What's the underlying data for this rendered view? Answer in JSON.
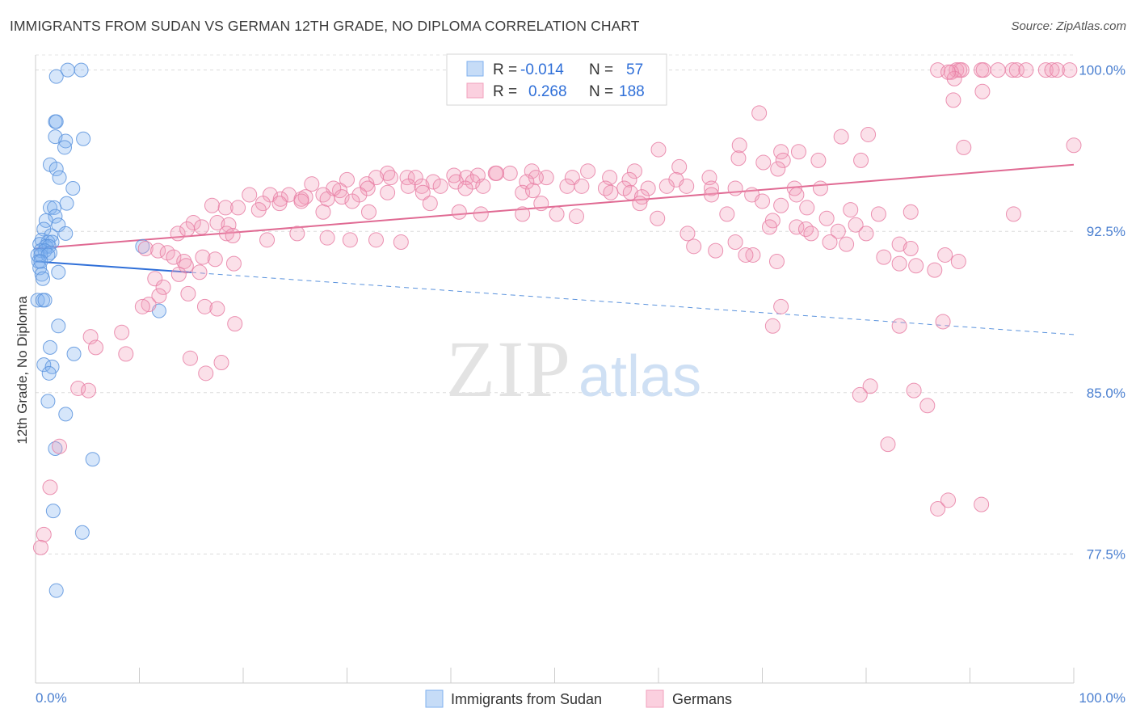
{
  "title": "IMMIGRANTS FROM SUDAN VS GERMAN 12TH GRADE, NO DIPLOMA CORRELATION CHART",
  "source": "Source: ZipAtlas.com",
  "watermark": {
    "zip": "ZIP",
    "atlas": "atlas"
  },
  "legend_box": {
    "rows": [
      {
        "r_label": "R =",
        "r_value": "-0.014",
        "n_label": "N =",
        "n_value": "57",
        "color": "#7fb0ef"
      },
      {
        "r_label": "R =",
        "r_value": "0.268",
        "n_label": "N =",
        "n_value": "188",
        "color": "#f2a0bc"
      }
    ]
  },
  "chart_data": {
    "type": "scatter",
    "title": "IMMIGRANTS FROM SUDAN VS GERMAN 12TH GRADE, NO DIPLOMA CORRELATION CHART",
    "xlabel": "",
    "ylabel": "12th Grade, No Diploma",
    "x_tick_labels": [
      "0.0%",
      "100.0%"
    ],
    "y_tick_labels": [
      "100.0%",
      "92.5%",
      "85.0%",
      "77.5%"
    ],
    "y_ticks": [
      100.0,
      92.5,
      85.0,
      77.5
    ],
    "xlim": [
      0,
      100
    ],
    "ylim": [
      71.5,
      100.7
    ],
    "grid": true,
    "legend_position": "bottom",
    "series": [
      {
        "name": "Immigrants from Sudan",
        "color": "#7fb0ef",
        "stroke": "#5b93dd",
        "trend": {
          "x": [
            0,
            100
          ],
          "y": [
            91.1,
            87.7
          ],
          "solid_until": 15
        },
        "points": [
          [
            3.1,
            100
          ],
          [
            4.4,
            100
          ],
          [
            2,
            99.7
          ],
          [
            1.9,
            97.6
          ],
          [
            2,
            97.6
          ],
          [
            1.9,
            96.9
          ],
          [
            2.9,
            96.7
          ],
          [
            4.6,
            96.8
          ],
          [
            2.8,
            96.4
          ],
          [
            1.4,
            95.6
          ],
          [
            2,
            95.4
          ],
          [
            2.3,
            95
          ],
          [
            3.6,
            94.5
          ],
          [
            3,
            93.8
          ],
          [
            1.4,
            93.6
          ],
          [
            1.8,
            93.6
          ],
          [
            1.9,
            93.2
          ],
          [
            1,
            93
          ],
          [
            2.2,
            92.8
          ],
          [
            0.8,
            92.6
          ],
          [
            2.9,
            92.4
          ],
          [
            1.5,
            92.3
          ],
          [
            0.6,
            92.1
          ],
          [
            1.2,
            92
          ],
          [
            1.6,
            92
          ],
          [
            0.4,
            91.9
          ],
          [
            1,
            91.8
          ],
          [
            1.3,
            91.8
          ],
          [
            10.3,
            91.8
          ],
          [
            0.5,
            91.6
          ],
          [
            0.9,
            91.6
          ],
          [
            1.4,
            91.5
          ],
          [
            0.2,
            91.4
          ],
          [
            0.5,
            91.4
          ],
          [
            1.2,
            91.4
          ],
          [
            0.3,
            91.1
          ],
          [
            0.5,
            91.1
          ],
          [
            0.4,
            90.8
          ],
          [
            2.2,
            90.6
          ],
          [
            0.6,
            90.5
          ],
          [
            0.7,
            90.3
          ],
          [
            0.2,
            89.3
          ],
          [
            0.7,
            89.3
          ],
          [
            0.9,
            89.3
          ],
          [
            11.9,
            88.8
          ],
          [
            2.2,
            88.1
          ],
          [
            1.4,
            87.1
          ],
          [
            3.7,
            86.8
          ],
          [
            0.8,
            86.3
          ],
          [
            1.6,
            86.2
          ],
          [
            1.3,
            85.9
          ],
          [
            1.2,
            84.6
          ],
          [
            2.9,
            84
          ],
          [
            1.9,
            82.4
          ],
          [
            5.5,
            81.9
          ],
          [
            1.7,
            79.5
          ],
          [
            4.5,
            78.5
          ],
          [
            2,
            75.8
          ]
        ]
      },
      {
        "name": "Germans",
        "color": "#f2a0bc",
        "stroke": "#e87fa5",
        "trend": {
          "x": [
            0,
            100
          ],
          "y": [
            91.7,
            95.6
          ]
        },
        "points": [
          [
            86.9,
            100
          ],
          [
            88.7,
            100
          ],
          [
            89,
            100
          ],
          [
            89.2,
            100
          ],
          [
            91.1,
            100
          ],
          [
            91.3,
            100
          ],
          [
            92.7,
            100
          ],
          [
            94.1,
            100
          ],
          [
            94.5,
            100
          ],
          [
            95.4,
            100
          ],
          [
            97.3,
            100
          ],
          [
            97.9,
            100
          ],
          [
            98.4,
            100
          ],
          [
            99.6,
            100
          ],
          [
            88.2,
            99.9
          ],
          [
            88.5,
            99.6
          ],
          [
            87.9,
            99.9
          ],
          [
            91.2,
            99
          ],
          [
            88.4,
            98.6
          ],
          [
            69.7,
            98
          ],
          [
            80.2,
            97
          ],
          [
            77.6,
            96.9
          ],
          [
            100,
            96.5
          ],
          [
            89.4,
            96.4
          ],
          [
            67.8,
            96.5
          ],
          [
            60,
            96.3
          ],
          [
            71.8,
            96.2
          ],
          [
            73.5,
            96.2
          ],
          [
            67.7,
            95.9
          ],
          [
            72,
            95.8
          ],
          [
            75.4,
            95.8
          ],
          [
            79.5,
            95.8
          ],
          [
            70.1,
            95.7
          ],
          [
            62,
            95.5
          ],
          [
            71.5,
            95.4
          ],
          [
            47.8,
            95.3
          ],
          [
            57.7,
            95.3
          ],
          [
            53.2,
            95.3
          ],
          [
            45.7,
            95.2
          ],
          [
            44.3,
            95.2
          ],
          [
            33.9,
            95.2
          ],
          [
            44.4,
            95.2
          ],
          [
            40.3,
            95.1
          ],
          [
            51.7,
            95
          ],
          [
            49.2,
            95
          ],
          [
            41.5,
            95
          ],
          [
            35.8,
            95
          ],
          [
            36.6,
            95
          ],
          [
            64.9,
            95
          ],
          [
            61.7,
            94.9
          ],
          [
            57.2,
            94.9
          ],
          [
            55.3,
            95
          ],
          [
            48.2,
            95
          ],
          [
            42.6,
            95.1
          ],
          [
            34.2,
            95
          ],
          [
            32.8,
            95
          ],
          [
            26.6,
            94.7
          ],
          [
            30,
            94.9
          ],
          [
            31.9,
            94.7
          ],
          [
            38.3,
            94.8
          ],
          [
            42.1,
            94.8
          ],
          [
            40.5,
            94.8
          ],
          [
            47.3,
            94.8
          ],
          [
            35.9,
            94.6
          ],
          [
            39,
            94.6
          ],
          [
            43.1,
            94.6
          ],
          [
            51.2,
            94.6
          ],
          [
            52.6,
            94.6
          ],
          [
            54.9,
            94.5
          ],
          [
            56.7,
            94.5
          ],
          [
            59,
            94.5
          ],
          [
            60.8,
            94.6
          ],
          [
            62.7,
            94.6
          ],
          [
            65.1,
            94.5
          ],
          [
            67.4,
            94.5
          ],
          [
            73.1,
            94.5
          ],
          [
            75.6,
            94.5
          ],
          [
            29.3,
            94.4
          ],
          [
            28.7,
            94.5
          ],
          [
            32,
            94.5
          ],
          [
            33.9,
            94.3
          ],
          [
            37.2,
            94.6
          ],
          [
            41.4,
            94.5
          ],
          [
            46.9,
            94.3
          ],
          [
            47.9,
            94.4
          ],
          [
            37.3,
            94.3
          ],
          [
            55.4,
            94.3
          ],
          [
            57.3,
            94.3
          ],
          [
            58.4,
            94.1
          ],
          [
            65.1,
            94.2
          ],
          [
            69,
            94.2
          ],
          [
            73.3,
            94.2
          ],
          [
            20.6,
            94.2
          ],
          [
            22.6,
            94.2
          ],
          [
            24.4,
            94.2
          ],
          [
            26,
            94.1
          ],
          [
            27.7,
            94.2
          ],
          [
            29.5,
            94.1
          ],
          [
            31.2,
            94.2
          ],
          [
            23.6,
            94
          ],
          [
            25.6,
            94
          ],
          [
            28.1,
            94
          ],
          [
            21.9,
            93.8
          ],
          [
            23.5,
            93.8
          ],
          [
            25.6,
            93.9
          ],
          [
            30.5,
            93.9
          ],
          [
            38,
            93.8
          ],
          [
            48.7,
            93.8
          ],
          [
            58.2,
            93.8
          ],
          [
            70,
            93.9
          ],
          [
            71.8,
            93.7
          ],
          [
            74.3,
            93.6
          ],
          [
            78.5,
            93.5
          ],
          [
            17,
            93.7
          ],
          [
            18.3,
            93.6
          ],
          [
            19.5,
            93.6
          ],
          [
            21.5,
            93.5
          ],
          [
            32.1,
            93.4
          ],
          [
            27.7,
            93.4
          ],
          [
            40.8,
            93.4
          ],
          [
            42.9,
            93.3
          ],
          [
            46.9,
            93.3
          ],
          [
            50.2,
            93.3
          ],
          [
            52.1,
            93.2
          ],
          [
            59.9,
            93.1
          ],
          [
            66.6,
            93.3
          ],
          [
            71,
            93
          ],
          [
            76.2,
            93.1
          ],
          [
            79,
            92.8
          ],
          [
            70.7,
            92.7
          ],
          [
            73.3,
            92.7
          ],
          [
            74.2,
            92.6
          ],
          [
            77.3,
            92.5
          ],
          [
            80,
            92.4
          ],
          [
            81.2,
            93.3
          ],
          [
            84.3,
            93.4
          ],
          [
            94.2,
            93.3
          ],
          [
            15.2,
            92.9
          ],
          [
            17.5,
            92.9
          ],
          [
            18.6,
            92.8
          ],
          [
            13.7,
            92.4
          ],
          [
            16,
            92.7
          ],
          [
            14.6,
            92.6
          ],
          [
            18.4,
            92.4
          ],
          [
            19,
            92.3
          ],
          [
            22.3,
            92.1
          ],
          [
            25.2,
            92.4
          ],
          [
            28.1,
            92.2
          ],
          [
            30.3,
            92.1
          ],
          [
            32.8,
            92.1
          ],
          [
            35.2,
            92
          ],
          [
            67.4,
            92
          ],
          [
            63.4,
            91.8
          ],
          [
            74.7,
            92.4
          ],
          [
            76.5,
            92
          ],
          [
            78.1,
            91.9
          ],
          [
            83.2,
            91.9
          ],
          [
            65.5,
            91.6
          ],
          [
            69.1,
            91.4
          ],
          [
            71.4,
            91.1
          ],
          [
            84.3,
            91.7
          ],
          [
            87.6,
            91.4
          ],
          [
            88.9,
            91.1
          ],
          [
            10.6,
            91.7
          ],
          [
            11.8,
            91.6
          ],
          [
            12.7,
            91.5
          ],
          [
            13.3,
            91.3
          ],
          [
            14.3,
            91.1
          ],
          [
            16.1,
            91.3
          ],
          [
            17.3,
            91.2
          ],
          [
            19.1,
            91
          ],
          [
            81.7,
            91.3
          ],
          [
            83.2,
            91
          ],
          [
            84.8,
            90.9
          ],
          [
            86.6,
            90.7
          ],
          [
            14.5,
            90.9
          ],
          [
            15.8,
            90.6
          ],
          [
            13.8,
            90.5
          ],
          [
            11.5,
            90.3
          ],
          [
            12.3,
            89.9
          ],
          [
            14.7,
            89.6
          ],
          [
            11.9,
            89.5
          ],
          [
            10.9,
            89.1
          ],
          [
            10.3,
            89
          ],
          [
            16.3,
            89
          ],
          [
            17.5,
            88.9
          ],
          [
            71,
            88.1
          ],
          [
            83.2,
            88.1
          ],
          [
            87.4,
            88.3
          ],
          [
            19.2,
            88.2
          ],
          [
            8.3,
            87.8
          ],
          [
            5.3,
            87.6
          ],
          [
            5.8,
            87.1
          ],
          [
            8.7,
            86.8
          ],
          [
            14.9,
            86.6
          ],
          [
            17.9,
            86.4
          ],
          [
            16.4,
            85.9
          ],
          [
            80.4,
            85.3
          ],
          [
            84.6,
            85.1
          ],
          [
            85.9,
            84.4
          ],
          [
            79.4,
            84.9
          ],
          [
            4.1,
            85.2
          ],
          [
            5.1,
            85.1
          ],
          [
            82.1,
            82.6
          ],
          [
            2.3,
            82.5
          ],
          [
            1.4,
            80.6
          ],
          [
            86.9,
            79.6
          ],
          [
            87.9,
            80
          ],
          [
            91.1,
            79.8
          ],
          [
            0.8,
            78.4
          ],
          [
            0.5,
            77.8
          ],
          [
            71.8,
            89
          ],
          [
            62.8,
            92.4
          ],
          [
            68.4,
            91.4
          ]
        ]
      }
    ]
  },
  "bottom_legend": [
    {
      "label": "Immigrants from Sudan",
      "color": "#7fb0ef"
    },
    {
      "label": "Germans",
      "color": "#f2a0bc"
    }
  ]
}
